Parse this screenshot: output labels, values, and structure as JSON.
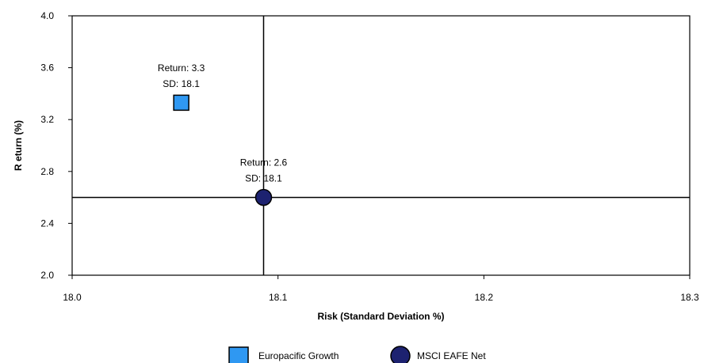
{
  "chart_data": {
    "type": "scatter",
    "title": "",
    "xlabel": "Risk (Standard Deviation %)",
    "ylabel": "R eturn (%)",
    "xlim": [
      18.0,
      18.3
    ],
    "ylim": [
      2.0,
      4.0
    ],
    "x_ticks": [
      {
        "value": 18.0,
        "label": "18.0"
      },
      {
        "value": 18.1,
        "label": "18.1"
      },
      {
        "value": 18.2,
        "label": "18.2"
      },
      {
        "value": 18.3,
        "label": "18.3"
      }
    ],
    "y_ticks": [
      {
        "value": 2.0,
        "label": "2.0"
      },
      {
        "value": 2.4,
        "label": "2.4"
      },
      {
        "value": 2.8,
        "label": "2.8"
      },
      {
        "value": 3.2,
        "label": "3.2"
      },
      {
        "value": 3.6,
        "label": "3.6"
      },
      {
        "value": 4.0,
        "label": "4.0"
      }
    ],
    "grid": false,
    "reference_lines": {
      "x": 18.093,
      "y": 2.6
    },
    "legend_position": "bottom",
    "series": [
      {
        "name": "Europacific Growth",
        "marker": "square",
        "color": "#2f98f2",
        "x": 18.053,
        "y": 3.33,
        "label_lines": [
          "Return: 3.3",
          "SD: 18.1"
        ]
      },
      {
        "name": "MSCI EAFE Net",
        "marker": "circle",
        "color": "#1d2270",
        "x": 18.093,
        "y": 2.6,
        "label_lines": [
          "Return: 2.6",
          "SD: 18.1"
        ]
      }
    ]
  }
}
